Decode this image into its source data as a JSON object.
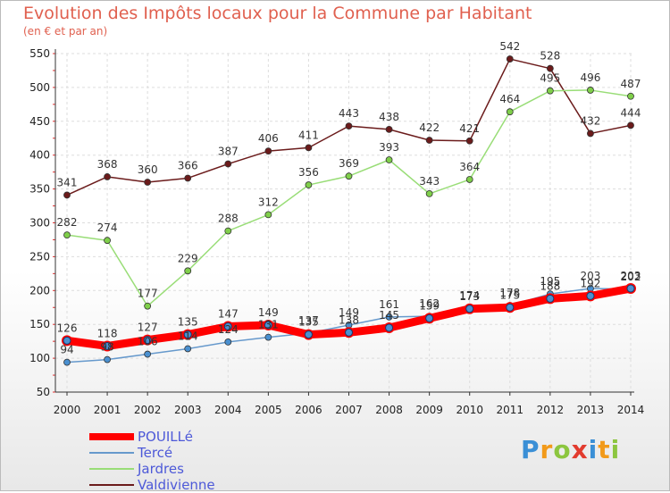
{
  "chart_data": {
    "type": "line",
    "title": "Evolution des Impôts locaux pour la Commune par Habitant",
    "subtitle": "(en € et par an)",
    "xlabel": "",
    "ylabel": "",
    "ylim": [
      50,
      550
    ],
    "yticks": [
      50,
      100,
      150,
      200,
      250,
      300,
      350,
      400,
      450,
      500,
      550
    ],
    "categories": [
      "2000",
      "2001",
      "2002",
      "2003",
      "2004",
      "2005",
      "2006",
      "2007",
      "2008",
      "2009",
      "2010",
      "2011",
      "2012",
      "2013",
      "2014"
    ],
    "grid": true,
    "legend_position": "bottom-left",
    "series": [
      {
        "name": "Valdivienne",
        "color": "#6b1b1b",
        "marker": "#6b1b1b",
        "values": [
          341,
          368,
          360,
          366,
          387,
          406,
          411,
          443,
          438,
          422,
          421,
          542,
          528,
          432,
          444
        ]
      },
      {
        "name": "Jardres",
        "color": "#99dd77",
        "marker": "#7fcf4a",
        "values": [
          282,
          274,
          177,
          229,
          288,
          312,
          356,
          369,
          393,
          343,
          364,
          464,
          495,
          496,
          487
        ]
      },
      {
        "name": "Tercé",
        "color": "#6699cc",
        "marker": "#4a90d0",
        "values": [
          94,
          98,
          106,
          114,
          124,
          131,
          137,
          149,
          161,
          162,
          174,
          178,
          195,
          203,
          202
        ]
      },
      {
        "name": "POUILLé",
        "color": "#ff0000",
        "marker": "#4a90d0",
        "values": [
          126,
          118,
          127,
          135,
          147,
          149,
          135,
          138,
          145,
          159,
          173,
          175,
          188,
          192,
          203
        ]
      }
    ]
  },
  "legend": {
    "items": [
      {
        "label": "POUILLé",
        "color": "#ff0000"
      },
      {
        "label": "Tercé",
        "color": "#6699cc"
      },
      {
        "label": "Jardres",
        "color": "#99dd77"
      },
      {
        "label": "Valdivienne",
        "color": "#6b1b1b"
      }
    ]
  },
  "logo": {
    "letters": [
      "P",
      "r",
      "o",
      "x",
      "i",
      "t",
      "i"
    ],
    "colors": [
      "#3a8fd6",
      "#f29a1a",
      "#8cc63f",
      "#e23b2e",
      "#3a8fd6",
      "#f29a1a",
      "#8cc63f"
    ]
  }
}
